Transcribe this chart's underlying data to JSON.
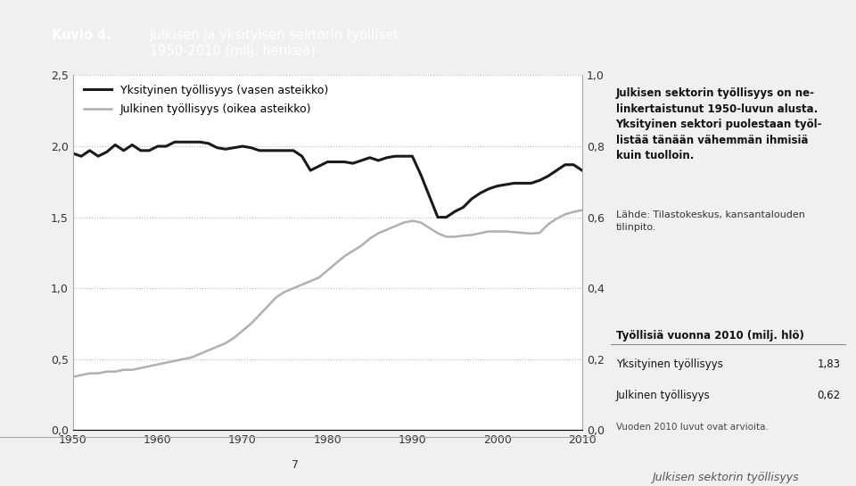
{
  "title_kuvio": "Kuvio 4.",
  "title_main": "Julkisen ja yksityisen sektorin työlliset\n1950-2010 (milj. henkeä)",
  "header_bg_color": "#8c8c8c",
  "right_panel_bg_color": "#d8d8d8",
  "page_bg": "#f0f0f0",
  "years": [
    1950,
    1951,
    1952,
    1953,
    1954,
    1955,
    1956,
    1957,
    1958,
    1959,
    1960,
    1961,
    1962,
    1963,
    1964,
    1965,
    1966,
    1967,
    1968,
    1969,
    1970,
    1971,
    1972,
    1973,
    1974,
    1975,
    1976,
    1977,
    1978,
    1979,
    1980,
    1981,
    1982,
    1983,
    1984,
    1985,
    1986,
    1987,
    1988,
    1989,
    1990,
    1991,
    1992,
    1993,
    1994,
    1995,
    1996,
    1997,
    1998,
    1999,
    2000,
    2001,
    2002,
    2003,
    2004,
    2005,
    2006,
    2007,
    2008,
    2009,
    2010
  ],
  "private": [
    1.95,
    1.93,
    1.97,
    1.93,
    1.96,
    2.01,
    1.97,
    2.01,
    1.97,
    1.97,
    2.0,
    2.0,
    2.03,
    2.03,
    2.03,
    2.03,
    2.02,
    1.99,
    1.98,
    1.99,
    2.0,
    1.99,
    1.97,
    1.97,
    1.97,
    1.97,
    1.97,
    1.93,
    1.83,
    1.86,
    1.89,
    1.89,
    1.89,
    1.88,
    1.9,
    1.92,
    1.9,
    1.92,
    1.93,
    1.93,
    1.93,
    1.8,
    1.65,
    1.5,
    1.5,
    1.54,
    1.57,
    1.63,
    1.67,
    1.7,
    1.72,
    1.73,
    1.74,
    1.74,
    1.74,
    1.76,
    1.79,
    1.83,
    1.87,
    1.87,
    1.83
  ],
  "public": [
    0.15,
    0.155,
    0.16,
    0.16,
    0.165,
    0.165,
    0.17,
    0.17,
    0.175,
    0.18,
    0.185,
    0.19,
    0.195,
    0.2,
    0.205,
    0.215,
    0.225,
    0.235,
    0.245,
    0.26,
    0.28,
    0.3,
    0.325,
    0.35,
    0.375,
    0.39,
    0.4,
    0.41,
    0.42,
    0.43,
    0.45,
    0.47,
    0.49,
    0.505,
    0.52,
    0.54,
    0.555,
    0.565,
    0.575,
    0.585,
    0.59,
    0.585,
    0.57,
    0.555,
    0.545,
    0.545,
    0.548,
    0.55,
    0.555,
    0.56,
    0.56,
    0.56,
    0.558,
    0.556,
    0.554,
    0.556,
    0.58,
    0.596,
    0.608,
    0.615,
    0.62
  ],
  "private_color": "#1a1a1a",
  "public_color": "#b0b0b0",
  "private_linewidth": 2.2,
  "public_linewidth": 1.8,
  "left_ylim": [
    0.0,
    2.5
  ],
  "right_ylim": [
    0.0,
    1.0
  ],
  "left_yticks": [
    0.0,
    0.5,
    1.0,
    1.5,
    2.0,
    2.5
  ],
  "right_yticks": [
    0.0,
    0.2,
    0.4,
    0.6,
    0.8,
    1.0
  ],
  "left_yticklabels": [
    "0,0",
    "0,5",
    "1,0",
    "1,5",
    "2,0",
    "2,5"
  ],
  "right_yticklabels": [
    "0,0",
    "0,2",
    "0,4",
    "0,6",
    "0,8",
    "1,0"
  ],
  "xticks": [
    1950,
    1960,
    1970,
    1980,
    1990,
    2000,
    2010
  ],
  "legend_private": "Yksityinen työllisyys (vasen asteikko)",
  "legend_public": "Julkinen työllisyys (oikea asteikko)",
  "right_text1": "Julkisen sektorin työllisyys on ne-\nlinkertaistunut 1950-luvun alusta.\nYksityinen sektori puolestaan työl-\nlistää tänään vähemmän ihmisiä\nkuin tuolloin.",
  "right_text2": "Lähde: Tilastokeskus, kansantalouden\ntilinpito.",
  "table_title": "Työllisiä vuonna 2010 (milj. hlö)",
  "table_row1_label": "Yksityinen työllisyys",
  "table_row1_value": "1,83",
  "table_row2_label": "Julkinen työllisyys",
  "table_row2_value": "0,62",
  "table_note": "Vuoden 2010 luvut ovat arvioita.",
  "footer_text": "7",
  "footer_right_text": "Julkisen sektorin työllisyys",
  "chart_bg": "#ffffff",
  "font_family": "DejaVu Sans"
}
